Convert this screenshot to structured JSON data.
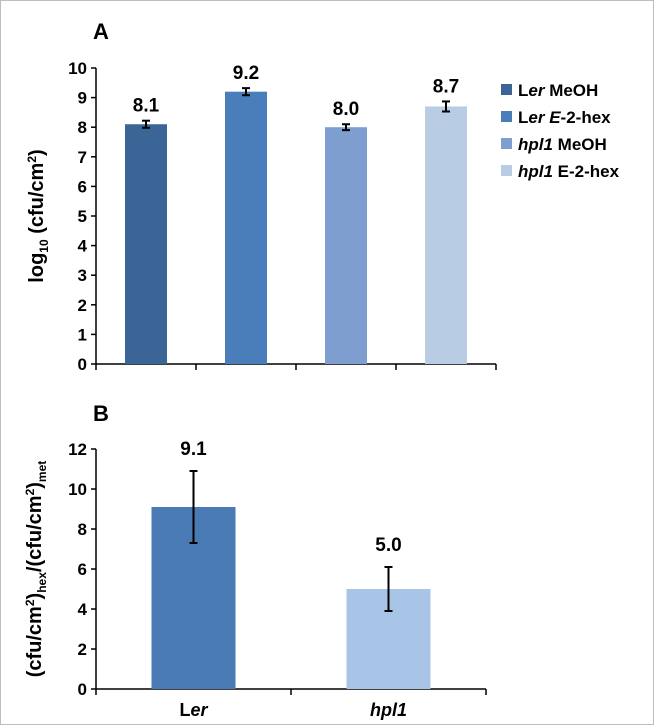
{
  "chart_data": [
    {
      "panel": "A",
      "type": "bar",
      "ylim": [
        0,
        10
      ],
      "yticks": [
        "0",
        "1",
        "2",
        "3",
        "4",
        "5",
        "6",
        "7",
        "8",
        "9",
        "10"
      ],
      "ylabel_main": "log",
      "ylabel_sub": "10",
      "ylabel_unit": "(cfu/cm",
      "ylabel_sup": "2",
      "ylabel_close": ")",
      "series": [
        {
          "legend_parts": [
            [
              "L",
              ""
            ],
            [
              "er",
              "i"
            ],
            [
              " MeOH",
              ""
            ]
          ],
          "value": 8.1,
          "error": 0.12,
          "label": "8.1",
          "color": "#3b6497"
        },
        {
          "legend_parts": [
            [
              "L",
              ""
            ],
            [
              "er",
              "i"
            ],
            [
              " ",
              ""
            ],
            [
              "E",
              "i"
            ],
            [
              "-2-hex",
              ""
            ]
          ],
          "value": 9.2,
          "error": 0.12,
          "label": "9.2",
          "color": "#4a7ebb"
        },
        {
          "legend_parts": [
            [
              "hpl1",
              "i"
            ],
            [
              " MeOH",
              ""
            ]
          ],
          "value": 8.0,
          "error": 0.1,
          "label": "8.0",
          "color": "#7e9ecf"
        },
        {
          "legend_parts": [
            [
              "hpl1",
              "i"
            ],
            [
              " E-2-hex",
              ""
            ]
          ],
          "value": 8.7,
          "error": 0.17,
          "label": "8.7",
          "color": "#b8cce4"
        }
      ],
      "grid": false,
      "legend_position": "right"
    },
    {
      "panel": "B",
      "type": "bar",
      "ylim": [
        0,
        12
      ],
      "yticks": [
        "0",
        "2",
        "4",
        "6",
        "8",
        "10",
        "12"
      ],
      "ylabel_parts": [
        [
          "(cfu/cm",
          ""
        ],
        [
          "2",
          "sup"
        ],
        [
          ")",
          ""
        ],
        [
          "hex",
          "sub"
        ],
        [
          "/(cfu/cm",
          ""
        ],
        [
          "2",
          "sup"
        ],
        [
          ")",
          ""
        ],
        [
          "met",
          "sub"
        ]
      ],
      "categories": [
        {
          "parts": [
            [
              "L",
              ""
            ],
            [
              "er",
              "i"
            ]
          ]
        },
        {
          "parts": [
            [
              "hpl1",
              "i"
            ]
          ]
        }
      ],
      "values": [
        9.1,
        5.0
      ],
      "errors": [
        1.8,
        1.1
      ],
      "labels": [
        "9.1",
        "5.0"
      ],
      "colors": [
        "#4a7ab3",
        "#a8c4e6"
      ],
      "grid": false
    }
  ]
}
